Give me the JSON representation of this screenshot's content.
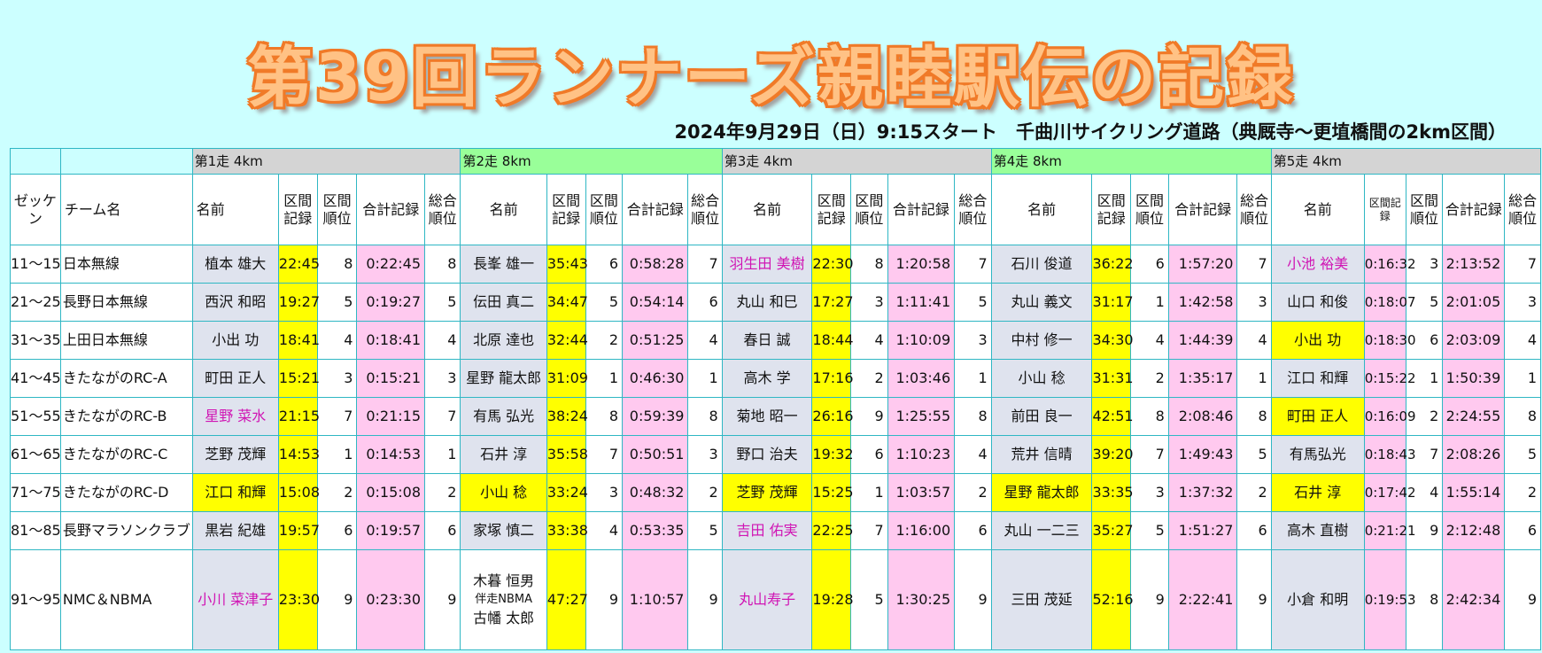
{
  "title": "第39回ランナーズ親睦駅伝の記録",
  "subtitle": "2024年9月29日（日）9:15スタート　千曲川サイクリング道路（典厩寺～更埴橋間の2km区間）",
  "legs": [
    {
      "label": "第1走 4km"
    },
    {
      "label": "第2走 8km"
    },
    {
      "label": "第3走 4km"
    },
    {
      "label": "第4走 8km"
    },
    {
      "label": "第5走 4km"
    }
  ],
  "headers": {
    "bib": "ゼッケン",
    "team": "チーム名",
    "name": "名前",
    "lap": "区間記録",
    "lap_rank": "区間順位",
    "total": "合計記録",
    "overall": "総合順位",
    "lap5": "区間記録"
  },
  "colors": {
    "background": "#ccffff",
    "name_cell": "#dfe3ee",
    "pink": "#ffc9ef",
    "yellow": "#ffff00",
    "leg_gray": "#d4d4d4",
    "leg_green": "#99ff99",
    "highlight_name": "#d015b4",
    "title_fill": "#ffc285",
    "title_outline": "#f07a28"
  },
  "rows": [
    {
      "bib": "11～15",
      "team": "日本無線",
      "legs": [
        {
          "name": "植本 雄大",
          "lap": "22:45",
          "rank": "8",
          "total": "0:22:45",
          "overall": "8"
        },
        {
          "name": "長峯 雄一",
          "lap": "35:43",
          "rank": "6",
          "total": "0:58:28",
          "overall": "7"
        },
        {
          "name": "羽生田 美樹",
          "lap": "22:30",
          "rank": "8",
          "total": "1:20:58",
          "overall": "7",
          "hl": true
        },
        {
          "name": "石川 俊道",
          "lap": "36:22",
          "rank": "6",
          "total": "1:57:20",
          "overall": "7"
        },
        {
          "name": "小池 裕美",
          "lap": "0:16:32",
          "rank": "3",
          "total": "2:13:52",
          "overall": "7",
          "hl": true
        }
      ]
    },
    {
      "bib": "21～25",
      "team": "長野日本無線",
      "legs": [
        {
          "name": "西沢 和昭",
          "lap": "19:27",
          "rank": "5",
          "total": "0:19:27",
          "overall": "5"
        },
        {
          "name": "伝田 真二",
          "lap": "34:47",
          "rank": "5",
          "total": "0:54:14",
          "overall": "6"
        },
        {
          "name": "丸山 和巳",
          "lap": "17:27",
          "rank": "3",
          "total": "1:11:41",
          "overall": "5"
        },
        {
          "name": "丸山 義文",
          "lap": "31:17",
          "rank": "1",
          "total": "1:42:58",
          "overall": "3"
        },
        {
          "name": "山口 和俊",
          "lap": "0:18:07",
          "rank": "5",
          "total": "2:01:05",
          "overall": "3"
        }
      ]
    },
    {
      "bib": "31～35",
      "team": "上田日本無線",
      "legs": [
        {
          "name": "小出 功",
          "lap": "18:41",
          "rank": "4",
          "total": "0:18:41",
          "overall": "4"
        },
        {
          "name": "北原 達也",
          "lap": "32:44",
          "rank": "2",
          "total": "0:51:25",
          "overall": "4"
        },
        {
          "name": "春日 誠",
          "lap": "18:44",
          "rank": "4",
          "total": "1:10:09",
          "overall": "3"
        },
        {
          "name": "中村 修一",
          "lap": "34:30",
          "rank": "4",
          "total": "1:44:39",
          "overall": "4"
        },
        {
          "name": "小出 功",
          "lap": "0:18:30",
          "rank": "6",
          "total": "2:03:09",
          "overall": "4",
          "yellow": true
        }
      ]
    },
    {
      "bib": "41～45",
      "team": "きたながのRC-A",
      "legs": [
        {
          "name": "町田 正人",
          "lap": "15:21",
          "rank": "3",
          "total": "0:15:21",
          "overall": "3"
        },
        {
          "name": "星野 龍太郎",
          "lap": "31:09",
          "rank": "1",
          "total": "0:46:30",
          "overall": "1"
        },
        {
          "name": "高木 学",
          "lap": "17:16",
          "rank": "2",
          "total": "1:03:46",
          "overall": "1"
        },
        {
          "name": "小山 稔",
          "lap": "31:31",
          "rank": "2",
          "total": "1:35:17",
          "overall": "1"
        },
        {
          "name": "江口 和輝",
          "lap": "0:15:22",
          "rank": "1",
          "total": "1:50:39",
          "overall": "1"
        }
      ]
    },
    {
      "bib": "51～55",
      "team": "きたながのRC-B",
      "legs": [
        {
          "name": "星野 菜水",
          "lap": "21:15",
          "rank": "7",
          "total": "0:21:15",
          "overall": "7",
          "hl": true
        },
        {
          "name": "有馬 弘光",
          "lap": "38:24",
          "rank": "8",
          "total": "0:59:39",
          "overall": "8"
        },
        {
          "name": "菊地 昭一",
          "lap": "26:16",
          "rank": "9",
          "total": "1:25:55",
          "overall": "8"
        },
        {
          "name": "前田 良一",
          "lap": "42:51",
          "rank": "8",
          "total": "2:08:46",
          "overall": "8"
        },
        {
          "name": "町田 正人",
          "lap": "0:16:09",
          "rank": "2",
          "total": "2:24:55",
          "overall": "8",
          "yellow": true
        }
      ]
    },
    {
      "bib": "61～65",
      "team": "きたながのRC-C",
      "legs": [
        {
          "name": "芝野 茂輝",
          "lap": "14:53",
          "rank": "1",
          "total": "0:14:53",
          "overall": "1"
        },
        {
          "name": "石井 淳",
          "lap": "35:58",
          "rank": "7",
          "total": "0:50:51",
          "overall": "3"
        },
        {
          "name": "野口 治夫",
          "lap": "19:32",
          "rank": "6",
          "total": "1:10:23",
          "overall": "4"
        },
        {
          "name": "荒井 信晴",
          "lap": "39:20",
          "rank": "7",
          "total": "1:49:43",
          "overall": "5"
        },
        {
          "name": "有馬弘光",
          "lap": "0:18:43",
          "rank": "7",
          "total": "2:08:26",
          "overall": "5"
        }
      ]
    },
    {
      "bib": "71～75",
      "team": "きたながのRC-D",
      "legs": [
        {
          "name": "江口 和輝",
          "lap": "15:08",
          "rank": "2",
          "total": "0:15:08",
          "overall": "2",
          "yellow": true
        },
        {
          "name": "小山 稔",
          "lap": "33:24",
          "rank": "3",
          "total": "0:48:32",
          "overall": "2",
          "yellow": true
        },
        {
          "name": "芝野 茂輝",
          "lap": "15:25",
          "rank": "1",
          "total": "1:03:57",
          "overall": "2",
          "yellow": true
        },
        {
          "name": "星野 龍太郎",
          "lap": "33:35",
          "rank": "3",
          "total": "1:37:32",
          "overall": "2",
          "yellow": true
        },
        {
          "name": "石井 淳",
          "lap": "0:17:42",
          "rank": "4",
          "total": "1:55:14",
          "overall": "2",
          "yellow": true
        }
      ]
    },
    {
      "bib": "81～85",
      "team": "長野マラソンクラブ",
      "legs": [
        {
          "name": "黒岩 紀雄",
          "lap": "19:57",
          "rank": "6",
          "total": "0:19:57",
          "overall": "6"
        },
        {
          "name": "家塚 慎二",
          "lap": "33:38",
          "rank": "4",
          "total": "0:53:35",
          "overall": "5"
        },
        {
          "name": "吉田 佑実",
          "lap": "22:25",
          "rank": "7",
          "total": "1:16:00",
          "overall": "6",
          "hl": true
        },
        {
          "name": "丸山 一二三",
          "lap": "35:27",
          "rank": "5",
          "total": "1:51:27",
          "overall": "6"
        },
        {
          "name": "高木 直樹",
          "lap": "0:21:21",
          "rank": "9",
          "total": "2:12:48",
          "overall": "6"
        }
      ]
    },
    {
      "bib": "91～95",
      "team": "NMC＆NBMA",
      "legs": [
        {
          "name": "小川 菜津子",
          "lap": "23:30",
          "rank": "9",
          "total": "0:23:30",
          "overall": "9",
          "hl": true
        },
        {
          "name": "木暮 恒男",
          "name2": "伴走NBMA",
          "name3": "古幡 太郎",
          "lap": "47:27",
          "rank": "9",
          "total": "1:10:57",
          "overall": "9"
        },
        {
          "name": "丸山寿子",
          "lap": "19:28",
          "rank": "5",
          "total": "1:30:25",
          "overall": "9",
          "hl": true
        },
        {
          "name": "三田 茂延",
          "lap": "52:16",
          "rank": "9",
          "total": "2:22:41",
          "overall": "9"
        },
        {
          "name": "小倉 和明",
          "lap": "0:19:53",
          "rank": "8",
          "total": "2:42:34",
          "overall": "9"
        }
      ]
    }
  ]
}
